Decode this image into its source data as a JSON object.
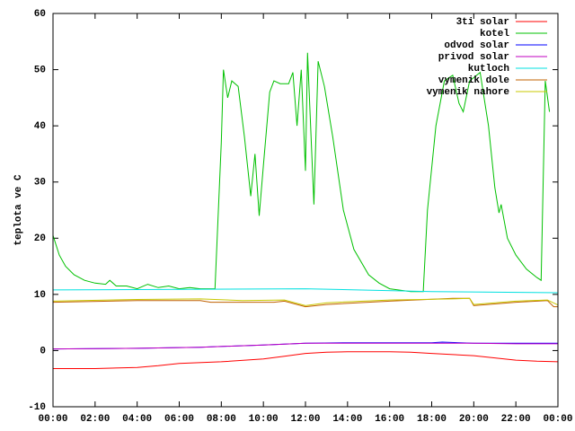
{
  "chart_data": {
    "type": "line",
    "ylabel": "teplota ve C",
    "xlim": [
      0,
      24
    ],
    "xticks": [
      {
        "value": 0,
        "label": "00:00"
      },
      {
        "value": 2,
        "label": "02:00"
      },
      {
        "value": 4,
        "label": "04:00"
      },
      {
        "value": 6,
        "label": "06:00"
      },
      {
        "value": 8,
        "label": "08:00"
      },
      {
        "value": 10,
        "label": "10:00"
      },
      {
        "value": 12,
        "label": "12:00"
      },
      {
        "value": 14,
        "label": "14:00"
      },
      {
        "value": 16,
        "label": "16:00"
      },
      {
        "value": 18,
        "label": "18:00"
      },
      {
        "value": 20,
        "label": "20:00"
      },
      {
        "value": 22,
        "label": "22:00"
      },
      {
        "value": 24,
        "label": "00:00"
      }
    ],
    "ylim": [
      -10,
      60
    ],
    "yticks": [
      -10,
      0,
      10,
      20,
      30,
      40,
      50,
      60
    ],
    "grid": false,
    "legend": "top-right",
    "series": [
      {
        "name": "3ti solar",
        "color": "#ff0000",
        "x": [
          0,
          2,
          4,
          5,
          6,
          8,
          10,
          11,
          12,
          13,
          14,
          16,
          17,
          18,
          20,
          21,
          22,
          23,
          24
        ],
        "values": [
          -3.2,
          -3.2,
          -3,
          -2.7,
          -2.3,
          -2,
          -1.5,
          -1,
          -0.5,
          -0.3,
          -0.2,
          -0.2,
          -0.3,
          -0.5,
          -0.9,
          -1.3,
          -1.7,
          -1.9,
          -2
        ]
      },
      {
        "name": "kotel",
        "color": "#00c000",
        "x": [
          0,
          0.3,
          0.6,
          1,
          1.5,
          2,
          2.5,
          2.7,
          3,
          3.5,
          4,
          4.5,
          5,
          5.5,
          6,
          6.5,
          7,
          7.5,
          7.7,
          8,
          8.1,
          8.3,
          8.5,
          8.8,
          9.1,
          9.4,
          9.6,
          9.8,
          10,
          10.3,
          10.5,
          10.8,
          11.2,
          11.4,
          11.6,
          11.8,
          12,
          12.1,
          12.4,
          12.6,
          12.9,
          13.3,
          13.8,
          14.3,
          15,
          15.5,
          16,
          17,
          17.6,
          17.8,
          18.2,
          18.6,
          19,
          19.3,
          19.5,
          19.8,
          20.3,
          20.7,
          21,
          21.2,
          21.3,
          21.6,
          22,
          22.5,
          23,
          23.2,
          23.4,
          23.6
        ],
        "values": [
          20.5,
          17,
          15,
          13.5,
          12.5,
          12,
          11.8,
          12.5,
          11.5,
          11.5,
          11,
          11.8,
          11.2,
          11.5,
          11,
          11.2,
          11,
          11,
          11,
          37,
          50,
          45,
          48,
          47,
          38,
          27.5,
          35,
          24,
          33,
          46,
          48,
          47.5,
          47.5,
          49.5,
          40,
          50,
          32,
          53,
          26,
          51.5,
          47,
          38,
          25,
          18,
          13.5,
          12,
          11,
          10.5,
          10.5,
          25,
          40,
          48,
          49,
          44,
          42.5,
          48,
          49.5,
          40,
          29,
          24.5,
          26,
          20,
          17,
          14.5,
          13,
          12.5,
          48,
          42.5
        ]
      },
      {
        "name": "odvod solar",
        "color": "#0000ff",
        "x": [
          0,
          4,
          7,
          10,
          12,
          14,
          18,
          18.5,
          20,
          24
        ],
        "values": [
          0.3,
          0.4,
          0.6,
          1,
          1.3,
          1.4,
          1.4,
          1.5,
          1.3,
          1.3
        ]
      },
      {
        "name": "privod solar",
        "color": "#c000c0",
        "x": [
          0,
          4,
          7,
          10,
          12,
          14,
          18,
          20,
          22,
          24
        ],
        "values": [
          0.3,
          0.4,
          0.6,
          1,
          1.3,
          1.3,
          1.3,
          1.3,
          1.2,
          1.2
        ]
      },
      {
        "name": "kutloch",
        "color": "#00e0e0",
        "x": [
          0,
          12,
          18,
          24
        ],
        "values": [
          10.8,
          11,
          10.5,
          10.3
        ]
      },
      {
        "name": "vymenik dole",
        "color": "#c06000",
        "x": [
          0,
          4,
          7,
          7.5,
          10.5,
          11,
          12,
          13,
          16,
          19,
          19.8,
          20,
          22,
          23.5,
          23.8,
          24
        ],
        "values": [
          8.6,
          8.9,
          8.9,
          8.6,
          8.6,
          8.8,
          7.8,
          8.2,
          8.8,
          9.3,
          9.3,
          8,
          8.6,
          8.9,
          7.8,
          7.8
        ]
      },
      {
        "name": "vymenik nahore",
        "color": "#c8c800",
        "x": [
          0,
          4,
          7,
          9,
          11,
          12,
          13,
          16,
          19,
          19.8,
          20,
          22,
          23.5,
          24
        ],
        "values": [
          8.8,
          9.1,
          9.2,
          8.9,
          9,
          8,
          8.5,
          9,
          9.2,
          9.3,
          8.2,
          8.8,
          9,
          8.1
        ]
      }
    ]
  }
}
